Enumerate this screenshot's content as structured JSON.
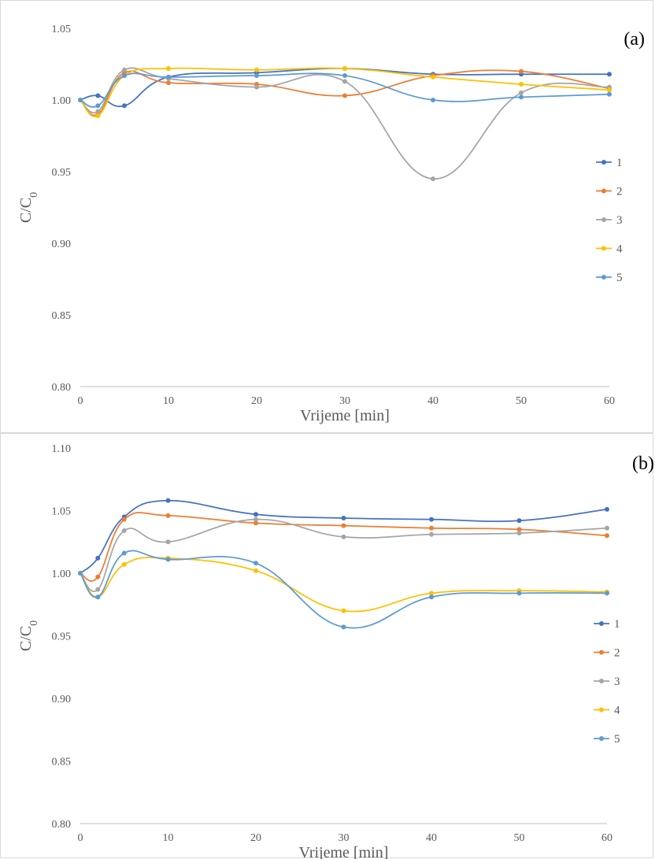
{
  "chart_data": [
    {
      "type": "line",
      "panel_label": "(a)",
      "xlabel": "Vrijeme [min]",
      "ylabel": "C/C",
      "ylabel_sub": "0",
      "xlim": [
        0,
        60
      ],
      "ylim": [
        0.8,
        1.05
      ],
      "xticks": [
        "0",
        "10",
        "20",
        "30",
        "40",
        "50",
        "60"
      ],
      "yticks": [
        "0.80",
        "0.85",
        "0.90",
        "0.95",
        "1.00",
        "1.05"
      ],
      "legend_position": "right",
      "x": [
        0,
        2,
        5,
        10,
        20,
        30,
        40,
        50,
        60
      ],
      "series": [
        {
          "name": "1",
          "color": "#4472c4",
          "values": [
            1.0,
            1.003,
            0.996,
            1.016,
            1.019,
            1.022,
            1.018,
            1.018,
            1.018
          ]
        },
        {
          "name": "2",
          "color": "#ed7d31",
          "values": [
            1.0,
            0.99,
            1.019,
            1.012,
            1.011,
            1.003,
            1.017,
            1.02,
            1.008
          ]
        },
        {
          "name": "3",
          "color": "#a5a5a5",
          "values": [
            1.0,
            0.992,
            1.021,
            1.015,
            1.009,
            1.013,
            0.945,
            1.005,
            1.009
          ]
        },
        {
          "name": "4",
          "color": "#ffc000",
          "values": [
            1.0,
            0.989,
            1.017,
            1.022,
            1.021,
            1.022,
            1.016,
            1.011,
            1.007
          ]
        },
        {
          "name": "5",
          "color": "#5b9bd5",
          "values": [
            1.0,
            0.996,
            1.017,
            1.016,
            1.017,
            1.017,
            1.0,
            1.002,
            1.004
          ]
        }
      ]
    },
    {
      "type": "line",
      "panel_label": "(b)",
      "xlabel": "Vrijeme [min]",
      "ylabel": "C/C",
      "ylabel_sub": "0",
      "xlim": [
        0,
        60
      ],
      "ylim": [
        0.8,
        1.1
      ],
      "xticks": [
        "0",
        "10",
        "20",
        "30",
        "40",
        "50",
        "60"
      ],
      "yticks": [
        "0.80",
        "0.85",
        "0.90",
        "0.95",
        "1.00",
        "1.05",
        "1.10"
      ],
      "legend_position": "right",
      "x": [
        0,
        2,
        5,
        10,
        20,
        30,
        40,
        50,
        60
      ],
      "series": [
        {
          "name": "1",
          "color": "#4472c4",
          "values": [
            1.0,
            1.012,
            1.045,
            1.058,
            1.047,
            1.044,
            1.043,
            1.042,
            1.051
          ]
        },
        {
          "name": "2",
          "color": "#ed7d31",
          "values": [
            1.0,
            0.997,
            1.043,
            1.046,
            1.04,
            1.038,
            1.036,
            1.035,
            1.03
          ]
        },
        {
          "name": "3",
          "color": "#a5a5a5",
          "values": [
            1.0,
            0.987,
            1.034,
            1.025,
            1.043,
            1.029,
            1.031,
            1.032,
            1.036
          ]
        },
        {
          "name": "4",
          "color": "#ffc000",
          "values": [
            1.0,
            0.981,
            1.007,
            1.012,
            1.002,
            0.97,
            0.984,
            0.986,
            0.985
          ]
        },
        {
          "name": "5",
          "color": "#5b9bd5",
          "values": [
            1.0,
            0.981,
            1.016,
            1.011,
            1.008,
            0.957,
            0.981,
            0.984,
            0.984
          ]
        }
      ]
    }
  ]
}
